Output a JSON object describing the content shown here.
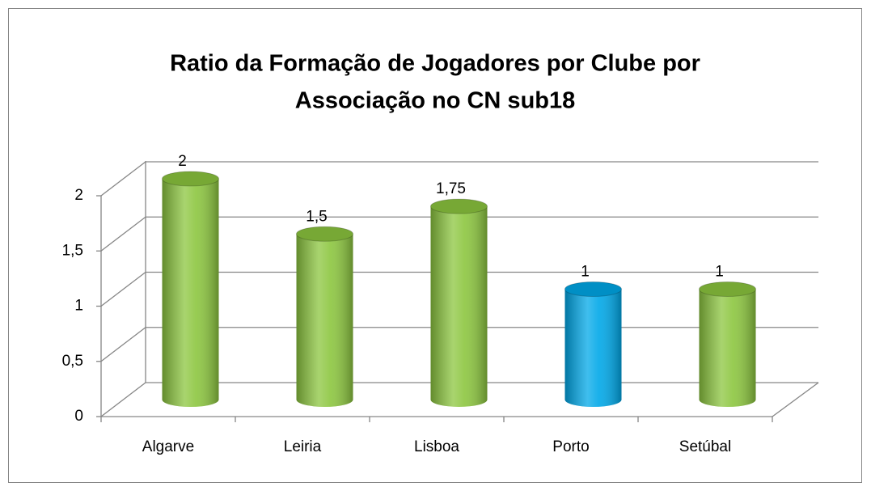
{
  "chart_data": {
    "type": "bar3d",
    "title": "Ratio da Formação de Jogadores por Clube por",
    "title_line2": "Associação no CN sub18",
    "categories": [
      "Algarve",
      "Leiria",
      "Lisboa",
      "Porto",
      "Setúbal"
    ],
    "values": [
      2,
      1.5,
      1.75,
      1,
      1
    ],
    "value_labels": [
      "2",
      "1,5",
      "1,75",
      "1",
      "1"
    ],
    "colors": [
      "#8cc63f",
      "#8cc63f",
      "#8cc63f",
      "#00a8e8",
      "#8cc63f"
    ],
    "ylim": [
      0,
      2
    ],
    "yticks": [
      0,
      {
        "value": 0.5,
        "label": "0,5"
      },
      1,
      {
        "value": 1.5,
        "label": "1,5"
      },
      2
    ],
    "grid": true
  }
}
